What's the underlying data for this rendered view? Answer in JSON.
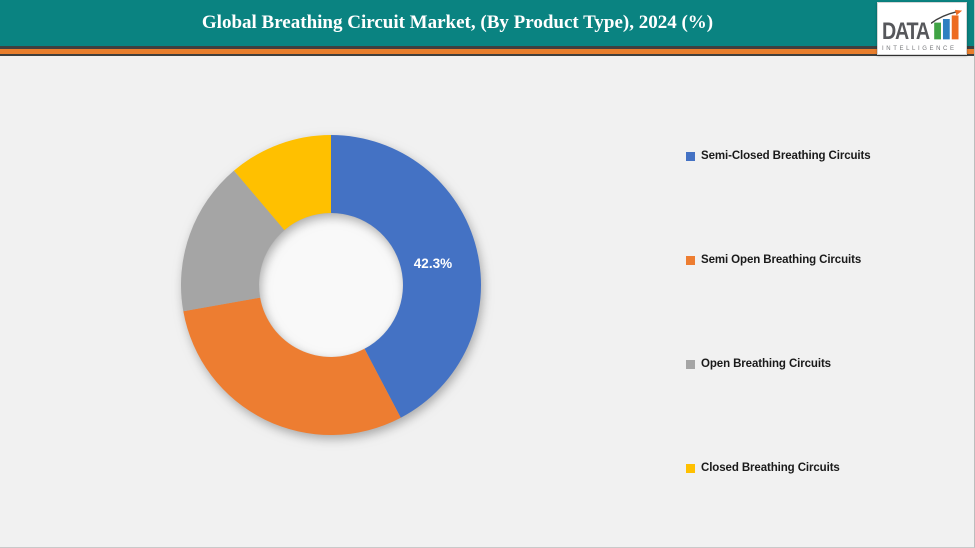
{
  "header": {
    "title": "Global Breathing Circuit Market, (By Product Type), 2024 (%)"
  },
  "logo": {
    "name": "DATA",
    "subtitle": "INTELLIGENCE",
    "bar_colors": [
      "#3FA344",
      "#2D7FC1",
      "#ED6B21"
    ],
    "arrow_color": "#3F3F3F"
  },
  "theme": {
    "header_teal": "#0A8381",
    "stripe_orange": "#E87E2D",
    "page_bg": "#F1F1F1"
  },
  "chart_data": {
    "type": "pie",
    "subtype": "donut",
    "title": "Global Breathing Circuit Market, (By Product Type), 2024 (%)",
    "unit": "%",
    "categories": [
      "Semi-Closed Breathing Circuits",
      "Semi Open Breathing Circuits",
      "Open Breathing Circuits",
      "Closed Breathing Circuits"
    ],
    "values": [
      42.3,
      29.9,
      16.6,
      11.2
    ],
    "colors": [
      "#4472C4",
      "#ED7D31",
      "#A5A5A5",
      "#FFC000"
    ],
    "data_labels": [
      "42.3%",
      "",
      "",
      ""
    ],
    "start_angle_deg": 0,
    "direction": "clockwise",
    "donut_hole_ratio": 0.48,
    "legend_position": "right"
  }
}
